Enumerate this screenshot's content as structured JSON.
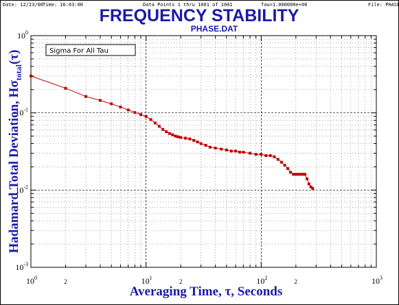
{
  "header": {
    "date": "Date: 12/23/00",
    "time": "Time: 16:03:00",
    "points": "Data Points 1 thru 1001 of 1001",
    "tau": "Tau=1.000000e+00",
    "file": "File: PHASE.DAT"
  },
  "colors": {
    "title": "#1a1aa8",
    "series": "#c00000"
  },
  "chart_data": {
    "type": "line",
    "title": "FREQUENCY STABILITY",
    "subtitle": "PHASE.DAT",
    "xlabel": "Averaging Time, τ, Seconds",
    "ylabel": "Hadamard Total Deviation, Hσtotal(τ)",
    "ylabel_parts": {
      "main": "Hadamard Total Deviation, Hσ",
      "sub": "total",
      "tail": "(τ)"
    },
    "x_scale": "log",
    "y_scale": "log",
    "xlim": [
      1,
      1000
    ],
    "ylim": [
      0.001,
      1
    ],
    "grid": true,
    "x_tick_labels": [
      {
        "base": "10",
        "exp": "0"
      },
      {
        "base": "10",
        "exp": "1"
      },
      {
        "base": "10",
        "exp": "2"
      },
      {
        "base": "10",
        "exp": "3"
      }
    ],
    "x_minor_labels": [
      {
        "value": 2,
        "label": "2"
      },
      {
        "value": 20,
        "label": "2"
      },
      {
        "value": 200,
        "label": "2"
      }
    ],
    "y_tick_labels": [
      {
        "base": "10",
        "exp": "0"
      },
      {
        "base": "10",
        "exp": "-1"
      },
      {
        "base": "10",
        "exp": "-2"
      },
      {
        "base": "10",
        "exp": "-3"
      }
    ],
    "legend": {
      "text": "Sigma For All Tau",
      "placement": "top-left"
    },
    "series": [
      {
        "x": [
          1,
          2,
          3,
          4,
          5,
          6,
          7,
          8,
          9,
          10,
          11,
          12,
          13,
          14,
          15,
          16,
          17,
          18,
          19,
          20,
          22,
          24,
          26,
          28,
          30,
          33,
          36,
          40,
          45,
          50,
          55,
          60,
          65,
          70,
          80,
          90,
          100,
          110,
          120,
          130,
          140,
          150,
          160,
          170,
          180,
          190,
          200,
          210,
          220,
          230,
          240,
          250,
          260,
          270,
          280
        ],
        "y": [
          0.3,
          0.208,
          0.163,
          0.145,
          0.131,
          0.119,
          0.109,
          0.101,
          0.095,
          0.09,
          0.082,
          0.074,
          0.067,
          0.061,
          0.057,
          0.054,
          0.052,
          0.05,
          0.049,
          0.048,
          0.047,
          0.046,
          0.044,
          0.042,
          0.04,
          0.038,
          0.036,
          0.035,
          0.034,
          0.033,
          0.032,
          0.032,
          0.031,
          0.031,
          0.03,
          0.029,
          0.029,
          0.028,
          0.028,
          0.027,
          0.025,
          0.023,
          0.021,
          0.019,
          0.017,
          0.016,
          0.016,
          0.016,
          0.016,
          0.016,
          0.016,
          0.014,
          0.012,
          0.011,
          0.0105
        ]
      }
    ]
  }
}
